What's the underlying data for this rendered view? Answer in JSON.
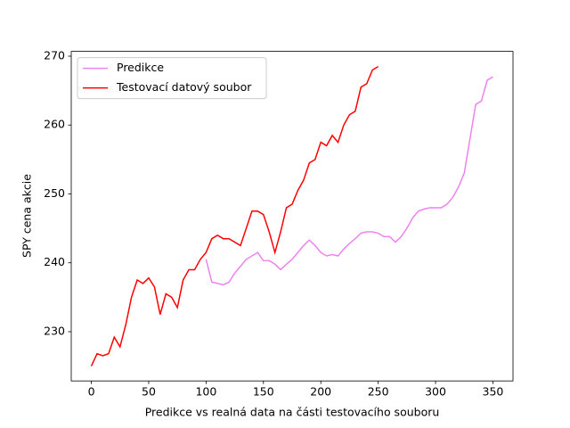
{
  "chart_data": {
    "type": "line",
    "xlabel": "Predikce vs realná data na části testovacího souboru",
    "ylabel": "SPY cena akcie",
    "x": [
      0,
      5,
      10,
      15,
      20,
      25,
      30,
      35,
      40,
      45,
      50,
      55,
      60,
      65,
      70,
      75,
      80,
      85,
      90,
      95,
      100,
      105,
      110,
      115,
      120,
      125,
      130,
      135,
      140,
      145,
      150,
      155,
      160,
      165,
      170,
      175,
      180,
      185,
      190,
      195,
      200,
      205,
      210,
      215,
      220,
      225,
      230,
      235,
      240,
      245,
      250,
      255,
      260,
      265,
      270,
      275,
      280,
      285,
      290,
      295,
      300,
      305,
      310,
      315,
      320,
      325,
      330,
      335,
      340,
      345,
      350
    ],
    "series": [
      {
        "name": "Predikce",
        "color": "#ee82ee",
        "values": [
          null,
          null,
          null,
          null,
          null,
          null,
          null,
          null,
          null,
          null,
          null,
          null,
          null,
          null,
          null,
          null,
          null,
          null,
          null,
          null,
          240.5,
          237.2,
          237,
          236.8,
          237.2,
          238.5,
          239.5,
          240.5,
          241,
          241.5,
          240.3,
          240.3,
          239.8,
          239,
          239.8,
          240.5,
          241.5,
          242.5,
          243.3,
          242.5,
          241.5,
          241,
          241.2,
          241,
          242,
          242.8,
          243.5,
          244.3,
          244.5,
          244.5,
          244.3,
          243.8,
          243.8,
          243,
          243.8,
          245,
          246.5,
          247.5,
          247.8,
          248,
          248,
          248,
          248.5,
          249.5,
          251,
          253,
          258,
          263,
          263.5,
          266.5,
          267
        ]
      },
      {
        "name": "Testovací datový soubor",
        "color": "#ff0000",
        "values": [
          225,
          226.8,
          226.5,
          226.8,
          229.2,
          227.8,
          231,
          235,
          237.5,
          237,
          237.8,
          236.5,
          232.5,
          235.5,
          235,
          233.5,
          237.5,
          239,
          239,
          240.5,
          241.5,
          243.5,
          244,
          243.5,
          243.5,
          243,
          242.5,
          245,
          247.5,
          247.5,
          247,
          244.5,
          241.5,
          244.5,
          248,
          248.5,
          250.5,
          252,
          254.5,
          255,
          257.5,
          257,
          258.5,
          257.5,
          260,
          261.5,
          262,
          265.5,
          266,
          268,
          268.5,
          null,
          null,
          null,
          null,
          null,
          null,
          null,
          null,
          null,
          null,
          null,
          null,
          null,
          null,
          null,
          null,
          null,
          null,
          null,
          null
        ]
      }
    ],
    "xlim": [
      -17.5,
      367.5
    ],
    "xticks": [
      0,
      50,
      100,
      150,
      200,
      250,
      300,
      350
    ],
    "ylim": [
      222.85,
      270.7
    ],
    "yticks": [
      230,
      240,
      250,
      260,
      270
    ],
    "legend": "upper left"
  }
}
